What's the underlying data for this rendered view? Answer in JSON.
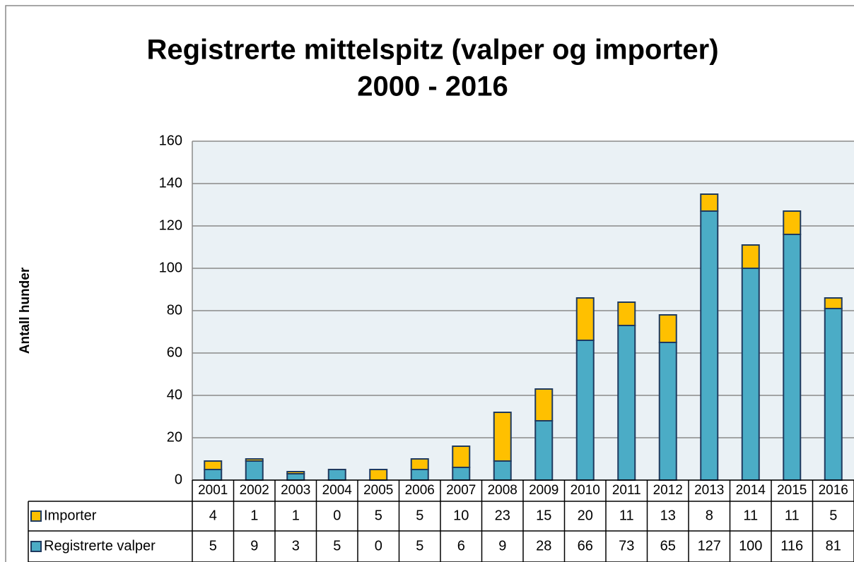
{
  "chart_data": {
    "type": "stacked_bar",
    "title": [
      "Registrerte mittelspitz (valper og importer)",
      "2000 - 2016"
    ],
    "y_label": "Antall hunder",
    "categories": [
      "2001",
      "2002",
      "2003",
      "2004",
      "2005",
      "2006",
      "2007",
      "2008",
      "2009",
      "2010",
      "2011",
      "2012",
      "2013",
      "2014",
      "2015",
      "2016"
    ],
    "series": [
      {
        "name": "Importer",
        "color": "#ffc000",
        "values": [
          4,
          1,
          1,
          0,
          5,
          5,
          10,
          23,
          15,
          20,
          11,
          13,
          8,
          11,
          11,
          5
        ]
      },
      {
        "name": "Registrerte valper",
        "color": "#4bacc6",
        "values": [
          5,
          9,
          3,
          5,
          0,
          5,
          6,
          9,
          28,
          66,
          73,
          65,
          127,
          100,
          116,
          81
        ]
      }
    ],
    "stack_order": [
      1,
      0
    ],
    "ylim": [
      0,
      160
    ],
    "yticks": [
      0,
      20,
      40,
      60,
      80,
      100,
      120,
      140,
      160
    ],
    "grid": true
  }
}
